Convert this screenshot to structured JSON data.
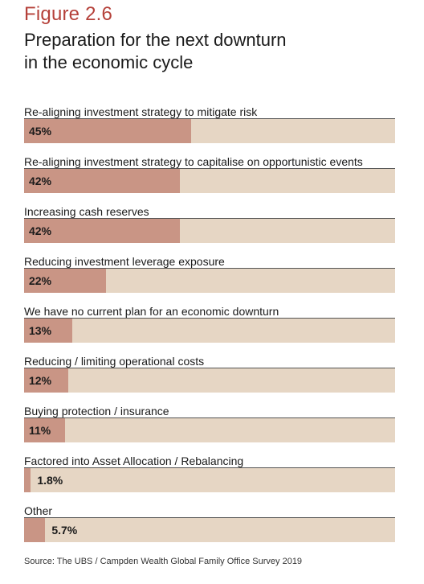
{
  "figure_label": "Figure 2.6",
  "title_line1": "Preparation for the next downturn",
  "title_line2": "in the economic cycle",
  "source": "Source: The UBS / Campden Wealth Global Family Office Survey 2019",
  "colors": {
    "fill": "#c99585",
    "track": "#e6d6c4",
    "figure_label": "#b5413a"
  },
  "chart_data": {
    "type": "bar",
    "orientation": "horizontal",
    "xlim": [
      0,
      100
    ],
    "categories": [
      "Re-aligning investment strategy to mitigate risk",
      "Re-aligning investment strategy to capitalise on opportunistic events",
      "Increasing cash reserves",
      "Reducing investment leverage exposure",
      "We have no current plan for an economic downturn",
      "Reducing / limiting operational costs",
      "Buying protection / insurance",
      "Factored into Asset Allocation / Rebalancing",
      "Other"
    ],
    "values": [
      45,
      42,
      42,
      22,
      13,
      12,
      11,
      1.8,
      5.7
    ],
    "value_labels": [
      "45%",
      "42%",
      "42%",
      "22%",
      "13%",
      "12%",
      "11%",
      "1.8%",
      "5.7%"
    ]
  }
}
